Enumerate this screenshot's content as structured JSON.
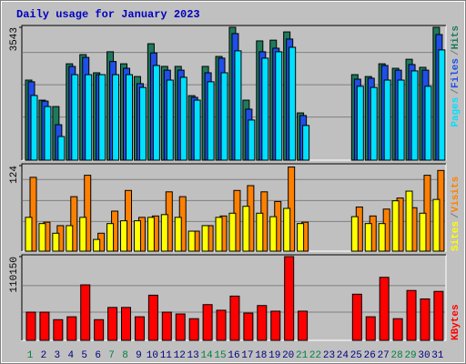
{
  "title": "Daily usage for January 2023",
  "legend_separator": "/",
  "chart_data": [
    {
      "type": "bar",
      "ylim": [
        0,
        3543
      ],
      "yticks": [
        3543
      ],
      "series": [
        {
          "name": "Pages",
          "color": "#00e0ff",
          "values": [
            1725,
            1430,
            630,
            2280,
            2280,
            2280,
            2280,
            2280,
            1940,
            2525,
            2135,
            2210,
            1600,
            2090,
            2330,
            2915,
            1070,
            2720,
            2890,
            3010,
            925,
            0,
            0,
            0,
            1970,
            1940,
            2135,
            2135,
            2380,
            1970,
            2940
          ]
        },
        {
          "name": "Files",
          "color": "#1f4fe8",
          "values": [
            2090,
            1575,
            945,
            2500,
            2740,
            2280,
            2630,
            2450,
            2040,
            2860,
            2400,
            2400,
            1675,
            2330,
            2720,
            3375,
            1360,
            2890,
            2985,
            3230,
            1190,
            0,
            0,
            0,
            2160,
            2185,
            2525,
            2400,
            2550,
            2400,
            3350
          ]
        },
        {
          "name": "Hits",
          "color": "#1e7a5c",
          "values": [
            2135,
            1600,
            1430,
            2570,
            2815,
            2330,
            2890,
            2570,
            2230,
            3105,
            2500,
            2500,
            1720,
            2500,
            2765,
            3543,
            1600,
            3180,
            3200,
            3420,
            1260,
            0,
            0,
            0,
            2280,
            2230,
            2570,
            2450,
            2690,
            2475,
            3543
          ]
        }
      ]
    },
    {
      "type": "bar",
      "ylim": [
        0,
        124
      ],
      "yticks": [
        124
      ],
      "series": [
        {
          "name": "Sites",
          "color": "#ffff00",
          "values": [
            49,
            40,
            26,
            37,
            49,
            17,
            40,
            44,
            44,
            49,
            53,
            49,
            29,
            37,
            49,
            55,
            65,
            55,
            50,
            62,
            40,
            0,
            0,
            0,
            50,
            40,
            40,
            73,
            87,
            55,
            75
          ]
        },
        {
          "name": "Visits",
          "color": "#ff8000",
          "values": [
            107,
            42,
            37,
            79,
            110,
            26,
            58,
            88,
            49,
            51,
            86,
            79,
            29,
            37,
            51,
            88,
            95,
            86,
            72,
            122,
            42,
            0,
            0,
            0,
            64,
            51,
            61,
            77,
            63,
            110,
            117
          ]
        }
      ]
    },
    {
      "type": "bar",
      "ylim": [
        0,
        110150
      ],
      "yticks": [
        110150
      ],
      "categories": [
        "1",
        "2",
        "3",
        "4",
        "5",
        "6",
        "7",
        "8",
        "9",
        "10",
        "11",
        "12",
        "13",
        "14",
        "15",
        "16",
        "17",
        "18",
        "19",
        "20",
        "21",
        "22",
        "23",
        "24",
        "25",
        "26",
        "27",
        "28",
        "29",
        "30",
        "31"
      ],
      "category_colors": [
        "#008040",
        "#000080",
        "#000080",
        "#000080",
        "#000080",
        "#000080",
        "#008040",
        "#008040",
        "#000080",
        "#000080",
        "#000080",
        "#000080",
        "#000080",
        "#008040",
        "#008040",
        "#000080",
        "#000080",
        "#000080",
        "#000080",
        "#000080",
        "#008040",
        "#008040",
        "#000080",
        "#000080",
        "#000080",
        "#000080",
        "#000080",
        "#008040",
        "#008040",
        "#000080",
        "#000080"
      ],
      "series": [
        {
          "name": "KBytes",
          "color": "#ff0000",
          "values": [
            37100,
            37100,
            27200,
            31000,
            73000,
            27200,
            43300,
            43300,
            31000,
            59400,
            37100,
            34700,
            28500,
            47000,
            39600,
            58200,
            35900,
            45800,
            38400,
            110150,
            38400,
            0,
            0,
            0,
            60700,
            31000,
            82900,
            28500,
            65600,
            54500,
            64400
          ]
        }
      ]
    }
  ]
}
